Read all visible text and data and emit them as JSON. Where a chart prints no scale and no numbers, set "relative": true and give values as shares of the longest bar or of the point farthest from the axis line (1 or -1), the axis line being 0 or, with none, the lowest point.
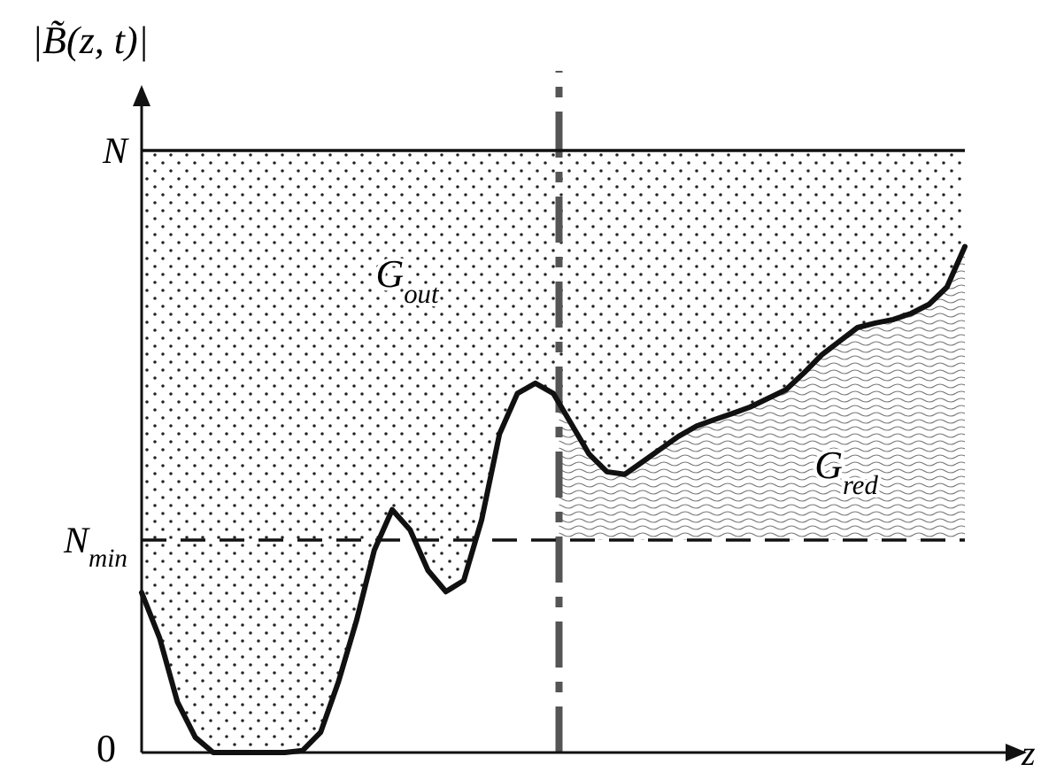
{
  "chart_data": {
    "type": "line",
    "relative": true,
    "xlabel": "z",
    "ylabel": "|B̃(z, t)|",
    "marker": "none",
    "line_style": "solid",
    "categories": [
      null,
      null,
      null,
      null,
      null,
      null,
      null,
      null,
      null,
      null,
      null,
      null,
      null,
      null,
      null,
      null,
      null,
      null,
      null,
      null,
      null,
      null,
      null,
      null,
      null,
      null,
      null,
      null,
      null,
      null,
      null,
      null,
      null,
      null,
      null,
      null,
      null,
      null,
      null,
      null,
      null,
      null,
      null,
      null,
      null,
      null,
      null
    ],
    "series": [
      {
        "color": "#111111",
        "values": [
          0.316,
          0.227,
          0.1,
          0.03,
          0,
          0,
          0,
          0,
          0,
          0.004,
          0.04,
          0.14,
          0.26,
          0.4,
          0.48,
          0.44,
          0.36,
          0.318,
          0.34,
          0.46,
          0.63,
          0.71,
          0.73,
          0.71,
          0.65,
          0.59,
          0.555,
          0.55,
          0.575,
          0.6,
          0.625,
          0.645,
          0.658,
          0.67,
          0.683,
          0.7,
          0.717,
          0.75,
          0.786,
          0.813,
          0.84,
          0.849,
          0.856,
          0.868,
          0.886,
          0.92,
          1
        ]
      }
    ],
    "ref_lines": [
      {
        "axis": "y",
        "value": 1.19,
        "label": "N",
        "color": "#111111",
        "line_style": "solid"
      },
      {
        "axis": "y",
        "value": 0.42,
        "label": "N$_{min}$",
        "color": "#111111",
        "line_style": "dashed"
      }
    ],
    "bands": [
      {
        "axis": "y",
        "from": 0,
        "to": 1.19,
        "label": "G$_{out}$"
      }
    ],
    "annotations": [
      "G$_{red}$",
      "0"
    ]
  }
}
